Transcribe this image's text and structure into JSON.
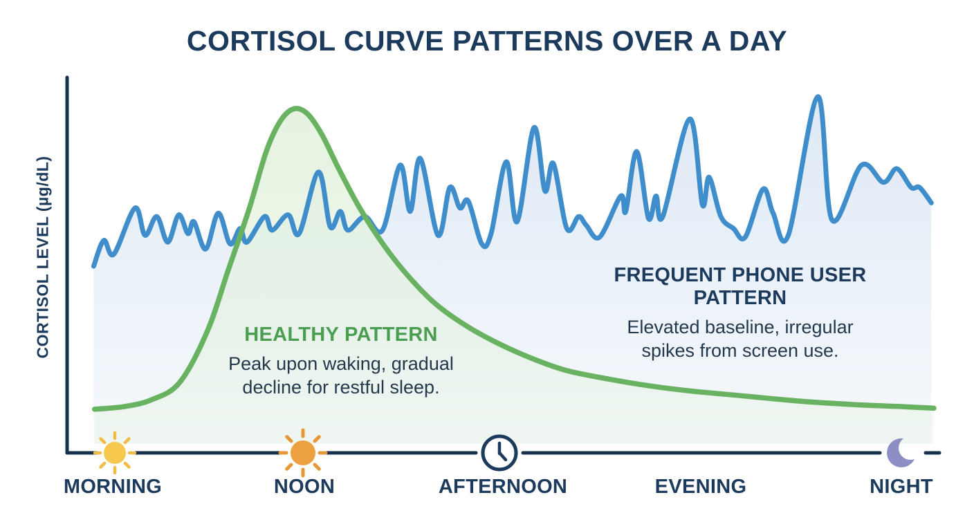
{
  "chart_data": {
    "type": "line",
    "title": "CORTISOL CURVE PATTERNS OVER A DAY",
    "ylabel": "CORTISOL LEVEL (µg/dL)",
    "xlabel": "",
    "x_unit": "percent of day (0-100)",
    "y_unit": "relative cortisol level (0-100, unlabeled axis)",
    "grid": false,
    "legend_position": "inline-annotations",
    "x_categories": [
      "MORNING",
      "NOON",
      "AFTERNOON",
      "EVENING",
      "NIGHT"
    ],
    "x_category_icons": [
      "sun-yellow",
      "sun-orange",
      "clock",
      "none",
      "moon"
    ],
    "series": [
      {
        "name": "Healthy Pattern",
        "color": "#68b262",
        "fill_color": "#e3f2dd",
        "shape": "smooth bell curve peaking near noon-morning boundary, long gradual decline to night",
        "points": [
          [
            0.3,
            7.7
          ],
          [
            3.9,
            8.5
          ],
          [
            7.1,
            10.5
          ],
          [
            10.4,
            15.5
          ],
          [
            13.7,
            30.5
          ],
          [
            16.2,
            48.5
          ],
          [
            18.7,
            66.5
          ],
          [
            20.7,
            83
          ],
          [
            22.4,
            92
          ],
          [
            24,
            95.5
          ],
          [
            25.6,
            94
          ],
          [
            27.3,
            88
          ],
          [
            29.3,
            78
          ],
          [
            31.8,
            66.5
          ],
          [
            34.7,
            55.5
          ],
          [
            37.6,
            46.5
          ],
          [
            40.8,
            38.5
          ],
          [
            44.5,
            32
          ],
          [
            48.2,
            27
          ],
          [
            52.3,
            22.5
          ],
          [
            56.4,
            19
          ],
          [
            61.4,
            16.5
          ],
          [
            66.3,
            14.5
          ],
          [
            71.2,
            13
          ],
          [
            77.8,
            11.5
          ],
          [
            84.4,
            10
          ],
          [
            91,
            9
          ],
          [
            95.9,
            8.5
          ],
          [
            100,
            8
          ]
        ]
      },
      {
        "name": "Frequent Phone User Pattern",
        "color": "#3f8ecb",
        "fill_color": "#dbe7f4",
        "shape": "elevated jagged baseline with irregular tall spikes across the whole day",
        "points": [
          [
            0.2,
            49.5
          ],
          [
            1.4,
            57
          ],
          [
            2.6,
            53
          ],
          [
            5.1,
            66.5
          ],
          [
            6.3,
            58.5
          ],
          [
            7.7,
            64
          ],
          [
            9,
            56.5
          ],
          [
            10.3,
            64.5
          ],
          [
            11.4,
            59
          ],
          [
            12.1,
            62.5
          ],
          [
            13.5,
            54.5
          ],
          [
            15,
            65
          ],
          [
            16.4,
            56
          ],
          [
            17.6,
            60.5
          ],
          [
            18.4,
            56.5
          ],
          [
            20.5,
            64
          ],
          [
            21.4,
            60
          ],
          [
            23.3,
            64.5
          ],
          [
            24.6,
            59
          ],
          [
            26.9,
            77
          ],
          [
            28.3,
            61
          ],
          [
            29.5,
            65.5
          ],
          [
            30.4,
            60
          ],
          [
            32.4,
            64
          ],
          [
            34.5,
            60
          ],
          [
            36.6,
            79
          ],
          [
            37.8,
            65.5
          ],
          [
            39,
            81
          ],
          [
            41.1,
            58.5
          ],
          [
            42.5,
            72.5
          ],
          [
            43.7,
            66.5
          ],
          [
            44.7,
            68.5
          ],
          [
            46.3,
            56
          ],
          [
            47.4,
            59
          ],
          [
            49.2,
            80
          ],
          [
            50.5,
            62.5
          ],
          [
            52.5,
            90
          ],
          [
            53.8,
            71.5
          ],
          [
            54.8,
            79.5
          ],
          [
            56.4,
            60.5
          ],
          [
            57.8,
            64
          ],
          [
            58.7,
            61.5
          ],
          [
            60.3,
            58
          ],
          [
            62.8,
            70
          ],
          [
            63.4,
            65.5
          ],
          [
            64.7,
            83
          ],
          [
            66.1,
            63.5
          ],
          [
            67,
            70
          ],
          [
            67.8,
            64
          ],
          [
            71,
            92.5
          ],
          [
            72.5,
            67.5
          ],
          [
            73.3,
            75.5
          ],
          [
            74.7,
            64
          ],
          [
            76.2,
            60.5
          ],
          [
            77.6,
            58
          ],
          [
            79.7,
            72
          ],
          [
            80.9,
            65
          ],
          [
            82.7,
            58.5
          ],
          [
            86.2,
            99
          ],
          [
            87.9,
            63
          ],
          [
            91.4,
            79
          ],
          [
            94,
            74
          ],
          [
            95.6,
            78
          ],
          [
            97.3,
            72.5
          ],
          [
            98.3,
            72.5
          ],
          [
            99.7,
            68
          ]
        ]
      }
    ],
    "annotations": {
      "healthy": {
        "title": "HEALTHY PATTERN",
        "line1": "Peak upon waking, gradual",
        "line2": "decline for restful sleep."
      },
      "phone": {
        "title": "FREQUENT PHONE USER PATTERN",
        "line1": "Elevated baseline, irregular",
        "line2": "spikes from screen use."
      }
    }
  },
  "colors": {
    "navy": "#1b3a5c",
    "axis": "#16304e",
    "text_dark": "#24384c",
    "blue_line": "#3f8ecb",
    "blue_fill": "#dbe7f4",
    "green_line": "#68b262",
    "green_fill": "#e3f2dd",
    "green_label": "#4a9d51",
    "sun_morning": "#f6c94e",
    "sun_morning_rays": "#f0bc45",
    "sun_noon": "#eda03f",
    "sun_noon_rays": "#e69839",
    "moon": "#8d8fc4"
  }
}
